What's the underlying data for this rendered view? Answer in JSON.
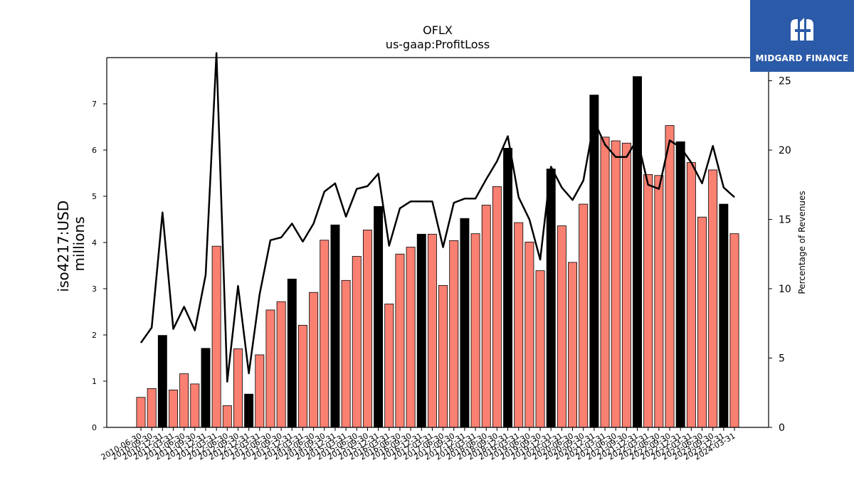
{
  "brand": {
    "name": "MIDGARD FINANCE",
    "color": "#2b5aa8"
  },
  "chart_data": {
    "type": "bar",
    "title": "OFLX",
    "subtitle": "us-gaap:ProfitLoss",
    "ylabel": "iso4217:USD\nmillions",
    "ylabel_right": "Percentage of Revenues",
    "ylim": [
      0,
      8
    ],
    "ylim_right": [
      0,
      26.67
    ],
    "yticks": [
      0,
      1,
      2,
      3,
      4,
      5,
      6,
      7
    ],
    "yticks_right": [
      0,
      5,
      10,
      15,
      20,
      25
    ],
    "grid": false,
    "colors": {
      "bar_quarter": "#fa8072",
      "bar_annual": "#000000",
      "line": "#000000"
    },
    "categories": [
      "2010-06-30",
      "2010-09-30",
      "2010-12-31",
      "2011-03-31",
      "2011-06-30",
      "2011-09-30",
      "2011-12-31",
      "2012-03-31",
      "2012-06-30",
      "2012-09-30",
      "2012-12-31",
      "2013-03-31",
      "2013-06-30",
      "2013-09-30",
      "2013-12-31",
      "2014-03-31",
      "2014-06-30",
      "2014-09-30",
      "2014-12-31",
      "2015-03-31",
      "2015-06-30",
      "2015-09-30",
      "2015-12-31",
      "2016-03-31",
      "2016-06-30",
      "2016-09-30",
      "2016-12-31",
      "2017-03-31",
      "2017-06-30",
      "2017-09-30",
      "2017-12-31",
      "2018-03-31",
      "2018-06-30",
      "2018-09-30",
      "2018-12-31",
      "2019-03-31",
      "2019-06-30",
      "2019-09-30",
      "2019-12-31",
      "2020-03-31",
      "2020-06-30",
      "2020-09-30",
      "2020-12-31",
      "2021-03-31",
      "2021-06-30",
      "2021-09-30",
      "2021-12-31",
      "2022-03-31",
      "2022-06-30",
      "2022-09-30",
      "2022-12-31",
      "2023-03-31",
      "2023-06-30",
      "2023-09-30",
      "2023-12-31",
      "2024-03-31"
    ],
    "xtick_labels": [
      "2010-06-30",
      "2010-09-30",
      "2010-12-31",
      "2011-03-31",
      "2011-06-30",
      "2011-09-30",
      "2011-12-31",
      "2012-03-31",
      "2012-06-30",
      "2012-09-30",
      "2012-12-31",
      "2013-03-31",
      "2013-06-30",
      "2013-09-30",
      "2013-12-31",
      "2014-03-31",
      "2014-06-30",
      "2014-09-30",
      "2014-12-31",
      "2015-03-31",
      "2015-06-30",
      "2015-09-30",
      "2015-12-31",
      "2016-03-31",
      "2016-06-30",
      "2016-09-30",
      "2016-12-31",
      "2017-03-31",
      "2017-06-30",
      "2017-09-30",
      "2017-12-31",
      "2018-03-31",
      "2018-06-30",
      "2018-09-30",
      "2018-12-31",
      "2019-03-31",
      "2019-06-30",
      "2019-09-30",
      "2019-12-31",
      "2020-03-31",
      "2020-06-30",
      "2020-09-30",
      "2020-12-31",
      "2021-03-31",
      "2021-06-30",
      "2021-09-30",
      "2021-12-31",
      "2022-03-31",
      "2022-06-30",
      "2022-09-30",
      "2022-12-31",
      "2023-03-31",
      "2023-06-30",
      "2023-09-30",
      "2023-12-31",
      "2024-03-31"
    ],
    "series": [
      {
        "values": [
          0.65,
          0.84,
          1.99,
          0.81,
          1.16,
          0.94,
          1.71,
          3.92,
          0.47,
          1.7,
          0.72,
          1.57,
          2.54,
          2.72,
          3.21,
          2.21,
          2.92,
          4.05,
          4.38,
          3.18,
          3.7,
          4.27,
          4.78,
          2.67,
          3.75,
          3.9,
          4.18,
          4.18,
          3.07,
          4.04,
          4.52,
          4.19,
          4.81,
          5.21,
          6.04,
          4.43,
          4.01,
          3.39,
          5.59,
          4.36,
          3.57,
          4.83,
          7.19,
          6.28,
          6.2,
          6.15,
          7.59,
          5.47,
          5.45,
          6.53,
          6.18,
          5.73,
          4.55,
          5.57,
          4.83,
          4.19
        ],
        "is_annual": [
          false,
          false,
          true,
          false,
          false,
          false,
          true,
          false,
          false,
          false,
          true,
          false,
          false,
          false,
          true,
          false,
          false,
          false,
          true,
          false,
          false,
          false,
          true,
          false,
          false,
          false,
          true,
          false,
          false,
          false,
          true,
          false,
          false,
          false,
          true,
          false,
          false,
          false,
          true,
          false,
          false,
          false,
          true,
          false,
          false,
          false,
          true,
          false,
          false,
          false,
          true,
          false,
          false,
          false,
          true,
          false
        ]
      },
      {
        "axis": "right",
        "values": [
          6.1,
          7.2,
          15.5,
          7.1,
          8.7,
          7.0,
          11.0,
          27.0,
          3.3,
          10.2,
          3.9,
          9.6,
          13.5,
          13.7,
          14.7,
          13.4,
          14.7,
          17.0,
          17.6,
          15.2,
          17.2,
          17.4,
          18.3,
          13.1,
          15.8,
          16.3,
          16.3,
          16.3,
          13.0,
          16.2,
          16.5,
          16.5,
          17.9,
          19.2,
          21.0,
          16.6,
          15.0,
          12.1,
          18.8,
          17.3,
          16.4,
          17.8,
          22.1,
          20.4,
          19.5,
          19.5,
          20.8,
          17.5,
          17.2,
          20.7,
          20.2,
          19.1,
          17.6,
          20.3,
          17.3,
          16.6
        ]
      }
    ]
  }
}
